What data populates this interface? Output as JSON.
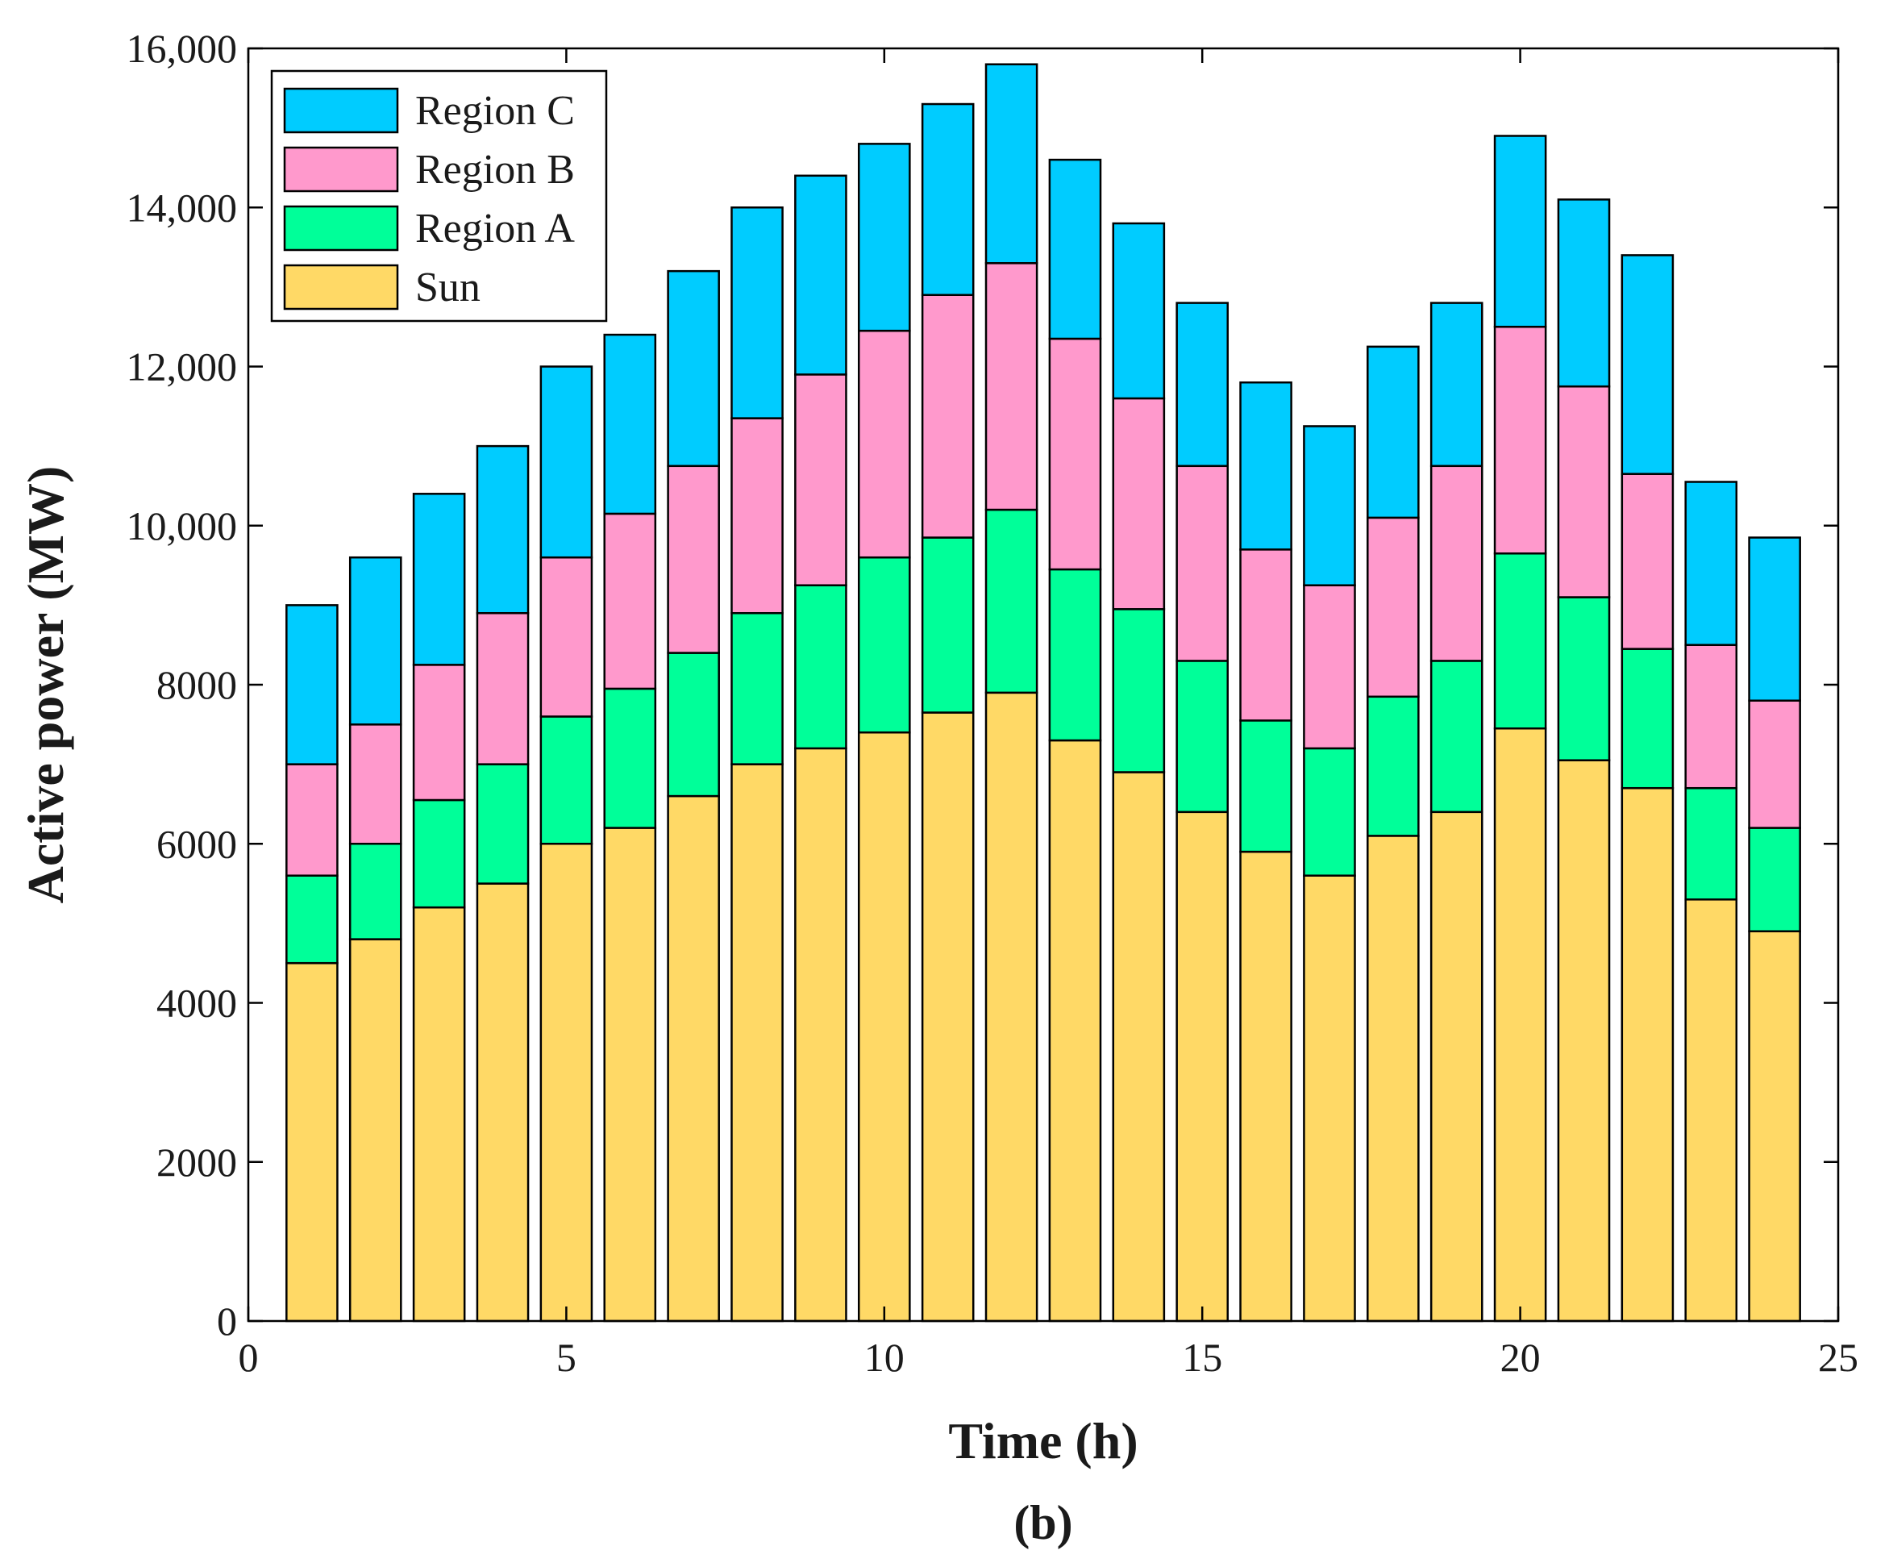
{
  "chart_data": {
    "type": "bar",
    "stacked": true,
    "x": [
      1,
      2,
      3,
      4,
      5,
      6,
      7,
      8,
      9,
      10,
      11,
      12,
      13,
      14,
      15,
      16,
      17,
      18,
      19,
      20,
      21,
      22,
      23,
      24
    ],
    "series": [
      {
        "name": "Sun",
        "color": "#FFD966",
        "values": [
          4500,
          4800,
          5200,
          5500,
          6000,
          6200,
          6600,
          7000,
          7200,
          7400,
          7650,
          7900,
          7300,
          6900,
          6400,
          5900,
          5600,
          6100,
          6400,
          7450,
          7050,
          6700,
          5300,
          4900
        ]
      },
      {
        "name": "Region A",
        "color": "#00FF99",
        "values": [
          1100,
          1200,
          1350,
          1500,
          1600,
          1750,
          1800,
          1900,
          2050,
          2200,
          2200,
          2300,
          2150,
          2050,
          1900,
          1650,
          1600,
          1750,
          1900,
          2200,
          2050,
          1750,
          1400,
          1300
        ]
      },
      {
        "name": "Region B",
        "color": "#FF99CC",
        "values": [
          1400,
          1500,
          1700,
          1900,
          2000,
          2200,
          2350,
          2450,
          2650,
          2850,
          3050,
          3100,
          2900,
          2650,
          2450,
          2150,
          2050,
          2250,
          2450,
          2850,
          2650,
          2200,
          1800,
          1600
        ]
      },
      {
        "name": "Region C",
        "color": "#00CCFF",
        "values": [
          2000,
          2100,
          2150,
          2100,
          2400,
          2250,
          2450,
          2650,
          2500,
          2350,
          2400,
          2500,
          2250,
          2200,
          2050,
          2100,
          2000,
          2150,
          2050,
          2400,
          2350,
          2750,
          2050,
          2050
        ]
      }
    ],
    "xlabel": "Time  (h)",
    "ylabel": "Active power (MW)",
    "xlim": [
      0,
      25
    ],
    "ylim": [
      0,
      16000
    ],
    "xticks": [
      0,
      5,
      10,
      15,
      20,
      25
    ],
    "xtick_labels": [
      "0",
      "5",
      "10",
      "15",
      "20",
      "25"
    ],
    "yticks": [
      0,
      2000,
      4000,
      6000,
      8000,
      10000,
      12000,
      14000,
      16000
    ],
    "ytick_labels": [
      "0",
      "2000",
      "4000",
      "6000",
      "8000",
      "10,000",
      "12,000",
      "14,000",
      "16,000"
    ],
    "legend": {
      "placement": "top-left",
      "entries": [
        "Region C",
        "Region B",
        "Region A",
        "Sun"
      ]
    },
    "grid": false,
    "panel_label": "(b)"
  }
}
